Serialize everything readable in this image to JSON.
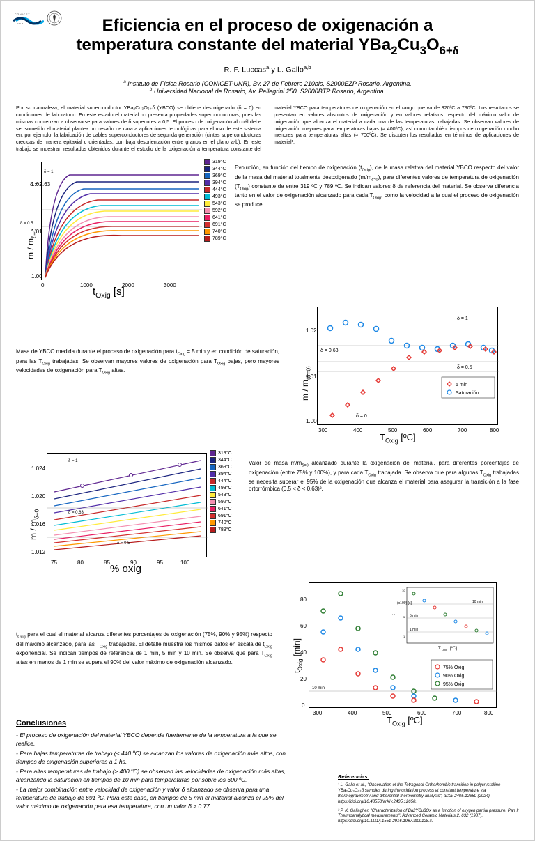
{
  "title_line1": "Eficiencia en el proceso de oxigenación a",
  "title_line2": "temperatura constante del material YBa",
  "title_compound_rest": "Cu",
  "authors": "R. F. Luccas",
  "authors2": " y L. Gallo",
  "affil_a": "Instituto de Física Rosario (CONICET-UNR), Bv. 27 de Febrero 210bis, S2000EZP Rosario, Argentina.",
  "affil_b": "Universidad Nacional de Rosario, Av. Pellegrini 250, S2000BTP Rosario, Argentina.",
  "abstract_left": "Por su naturaleza, el material superconductor YBa₂Cu₃O₆₊δ (YBCO) se obtiene desoxigenado (δ = 0) en condiciones de laboratorio. En este estado el material no presenta propiedades superconductoras, pues las mismas comienzan a observarse para valores de δ superiores a 0,5. El proceso de oxigenación al cuál debe ser sometido el material plantea un desafío de cara a aplicaciones tecnológicas para el uso de este sistema en, por ejemplo, la fabricación de cables superconductores de segunda generación (cintas superconductoras crecidas de manera epitaxial c orientadas, con baja desorientación entre granos en el plano a-b). En este trabajo se muestran",
  "abstract_right": "resultados obtenidos durante el estudio de la oxigenación a temperatura constante del material YBCO para temperaturas de oxigenación en el rango que va de 320ºC a 790ºC. Los resultados se presentan en valores absolutos de oxigenación y en valores relativos respecto del máximo valor de oxigenación que alcanza el material a cada una de las temperaturas trabajadas. Se observan valores de oxigenación mayores para temperaturas bajas (≈ 400ºC), así como también tiempos de oxigenación mucho menores para temperaturas altas (≈ 700ºC). Se discuten los resultados en términos de aplicaciones de material¹.",
  "temps": [
    "319°C",
    "344°C",
    "369°C",
    "394°C",
    "444°C",
    "493°C",
    "543°C",
    "592°C",
    "641°C",
    "691°C",
    "740°C",
    "789°C"
  ],
  "temp_colors": [
    "#5e2590",
    "#1a237e",
    "#1565c0",
    "#512da8",
    "#c62828",
    "#00bcd4",
    "#ffeb3b",
    "#f48fb1",
    "#e91e63",
    "#d32f2f",
    "#ff9800",
    "#b71c1c"
  ],
  "fig1": {
    "xlabel": "t",
    "xlabel_sub": "Oxig",
    "xlabel_unit": " [s]",
    "ylabel": "m / m",
    "ylabel_sub": "δ=0",
    "xticks": [
      "0",
      "1000",
      "2000",
      "3000"
    ],
    "yticks": [
      "1.00",
      "1.01",
      "1.02"
    ],
    "delta_labels": [
      "δ = 1",
      "δ = 0.63",
      "δ = 0.5"
    ],
    "caption": "Evolución, en función del tiempo de oxigenación (t",
    "caption_rest": "), de la masa relativa del material YBCO respecto del valor de la masa del material totalmente desoxigenado (m/m",
    "caption_rest2": "), para diferentes valores de temperatura de oxigenación (T",
    "caption_rest3": ") constante de entre 319 ºC y 789 ºC. Se indican valores δ de referencia del material. Se observa diferencia tanto en el valor de oxigenación alcanzado para cada T",
    "caption_rest4": ", como la velocidad a la cual el proceso de oxigenación se produce."
  },
  "fig2": {
    "xlabel": "T",
    "xlabel_sub": "Oxig",
    "xlabel_unit": " [ºC]",
    "ylabel": "m / m",
    "ylabel_sub": "(δ=0)",
    "xticks": [
      "300",
      "400",
      "500",
      "600",
      "700",
      "800"
    ],
    "yticks": [
      "1.00",
      "1.01",
      "1.02"
    ],
    "delta_labels": [
      "δ = 1",
      "δ = 0.63",
      "δ = 0.5",
      "δ = 0"
    ],
    "legend": [
      "5 min",
      "Saturación"
    ],
    "legend_colors": [
      "#e53935",
      "#1e88e5"
    ],
    "caption": "Masa de YBCO medida durante el proceso de oxigenación para t",
    "caption_rest": " = 5 min y en condición de saturación, para las T",
    "caption_rest2": " trabajadas. Se observan mayores valores de oxigenación para T",
    "caption_rest3": " bajas, pero mayores velocidades de oxigenación para T",
    "caption_rest4": " altas."
  },
  "fig3": {
    "xlabel": "% oxig",
    "ylabel": "m / m",
    "ylabel_sub": "δ=0",
    "xticks": [
      "75",
      "80",
      "85",
      "90",
      "95",
      "100"
    ],
    "yticks": [
      "1.012",
      "1.016",
      "1.020",
      "1.024"
    ],
    "delta_labels": [
      "δ = 1",
      "δ = 0.63",
      "δ = 0.5"
    ],
    "caption": "Valor de masa m/m",
    "caption_rest": " alcanzado durante la oxigenación del material, para diferentes porcentajes de oxigenación (entre 75% y 100%), y para cada T",
    "caption_rest2": " trabajada. Se observa que para algunas T",
    "caption_rest3": " trabajadas se necesita superar el 95% de la oxigenación que alcanza el material para asegurar la transición a la fase ortorrómbica (0.5 < δ < 0.63)²."
  },
  "fig4": {
    "xlabel": "T",
    "xlabel_sub": "Oxig",
    "xlabel_unit": " [ºC]",
    "ylabel": "t",
    "ylabel_sub": "Oxig",
    "ylabel_unit": " [min]",
    "xticks": [
      "300",
      "400",
      "500",
      "600",
      "700",
      "800"
    ],
    "yticks": [
      "0",
      "20",
      "40",
      "60",
      "80"
    ],
    "ref_line": "10 min",
    "legend": [
      "75% Oxig",
      "90% Oxig",
      "95% Oxig"
    ],
    "legend_colors": [
      "#e53935",
      "#1e88e5",
      "#2e7d32"
    ],
    "inset_xlabel": "T",
    "inset_ylabel": "t",
    "inset_refs": [
      "10 min",
      "5 min",
      "1 min"
    ],
    "inset_yticks": [
      "1",
      "5",
      "10"
    ],
    "inset_ylabel_unit": "(x100) [s]",
    "caption": "t",
    "caption_rest": " para el cual el material alcanza diferentes porcentajes de oxigenación (75%, 90% y 95%) respecto del máximo alcanzado, para las T",
    "caption_rest2": " trabajadas. El detalle muestra los mismos datos en escala de t",
    "caption_rest3": " exponencial. Se indican tiempos de referencia de 1 min, 5 min y 10 min. Se observa que para T",
    "caption_rest4": " altas en menos de 1 min se supera el 90% del valor máximo de oxigenación alcanzado."
  },
  "conclusions_h": "Conclusiones",
  "conc1": " - El proceso de oxigenación del material YBCO depende fuertemente de la temperatura a la que se realice.",
  "conc2": " - Para bajas temperaturas de trabajo (< 440 ºC) se alcanzan los valores de oxigenación más altos, con tiempos de oxigenación superiores a 1 hs.",
  "conc3": " - Para altas temperaturas de trabajo (> 400 ºC) se observan las velocidades de oxigenación más altas, alcanzando la saturación en tiempos de 10 min para temperaturas por sobre los 600 ºC.",
  "conc4": " - La mejor combinación entre velocidad de oxigenación y valor δ alcanzado se observa para una temperatura de trabajo de 691 ºC. Para este caso, en tiempos de 5 min el material alcanza el 95% del valor máximo de oxigenación para esa temperatura, con un valor δ > 0.77.",
  "refs_h": "Referencias:",
  "ref1": "¹ L. Gallo et al., \"Observation of the Tetragonal-Orthorhombic transition in polycrystalline YBa₂Cu₃O₆₊δ samples during the oxidation process at constant temperature via thermogravimetry and differential thermometry analysis\", arXiv 2405.12650 (2024), https://doi.org/10.48550/arXiv.2405.12650.",
  "ref2": "² P. K. Gallagher, \"Characterization of Ba2YCu3Ox as a function of oxygen partial pressure. Part I: Thermoanalytical measurements\", Advanced Ceramic Materials 2, 632 (1987), https://doi.org/10.1111/j.1551-2916.1987.tb00128.x.",
  "logo_colors": {
    "blue": "#00a8e8",
    "dark": "#003366"
  }
}
